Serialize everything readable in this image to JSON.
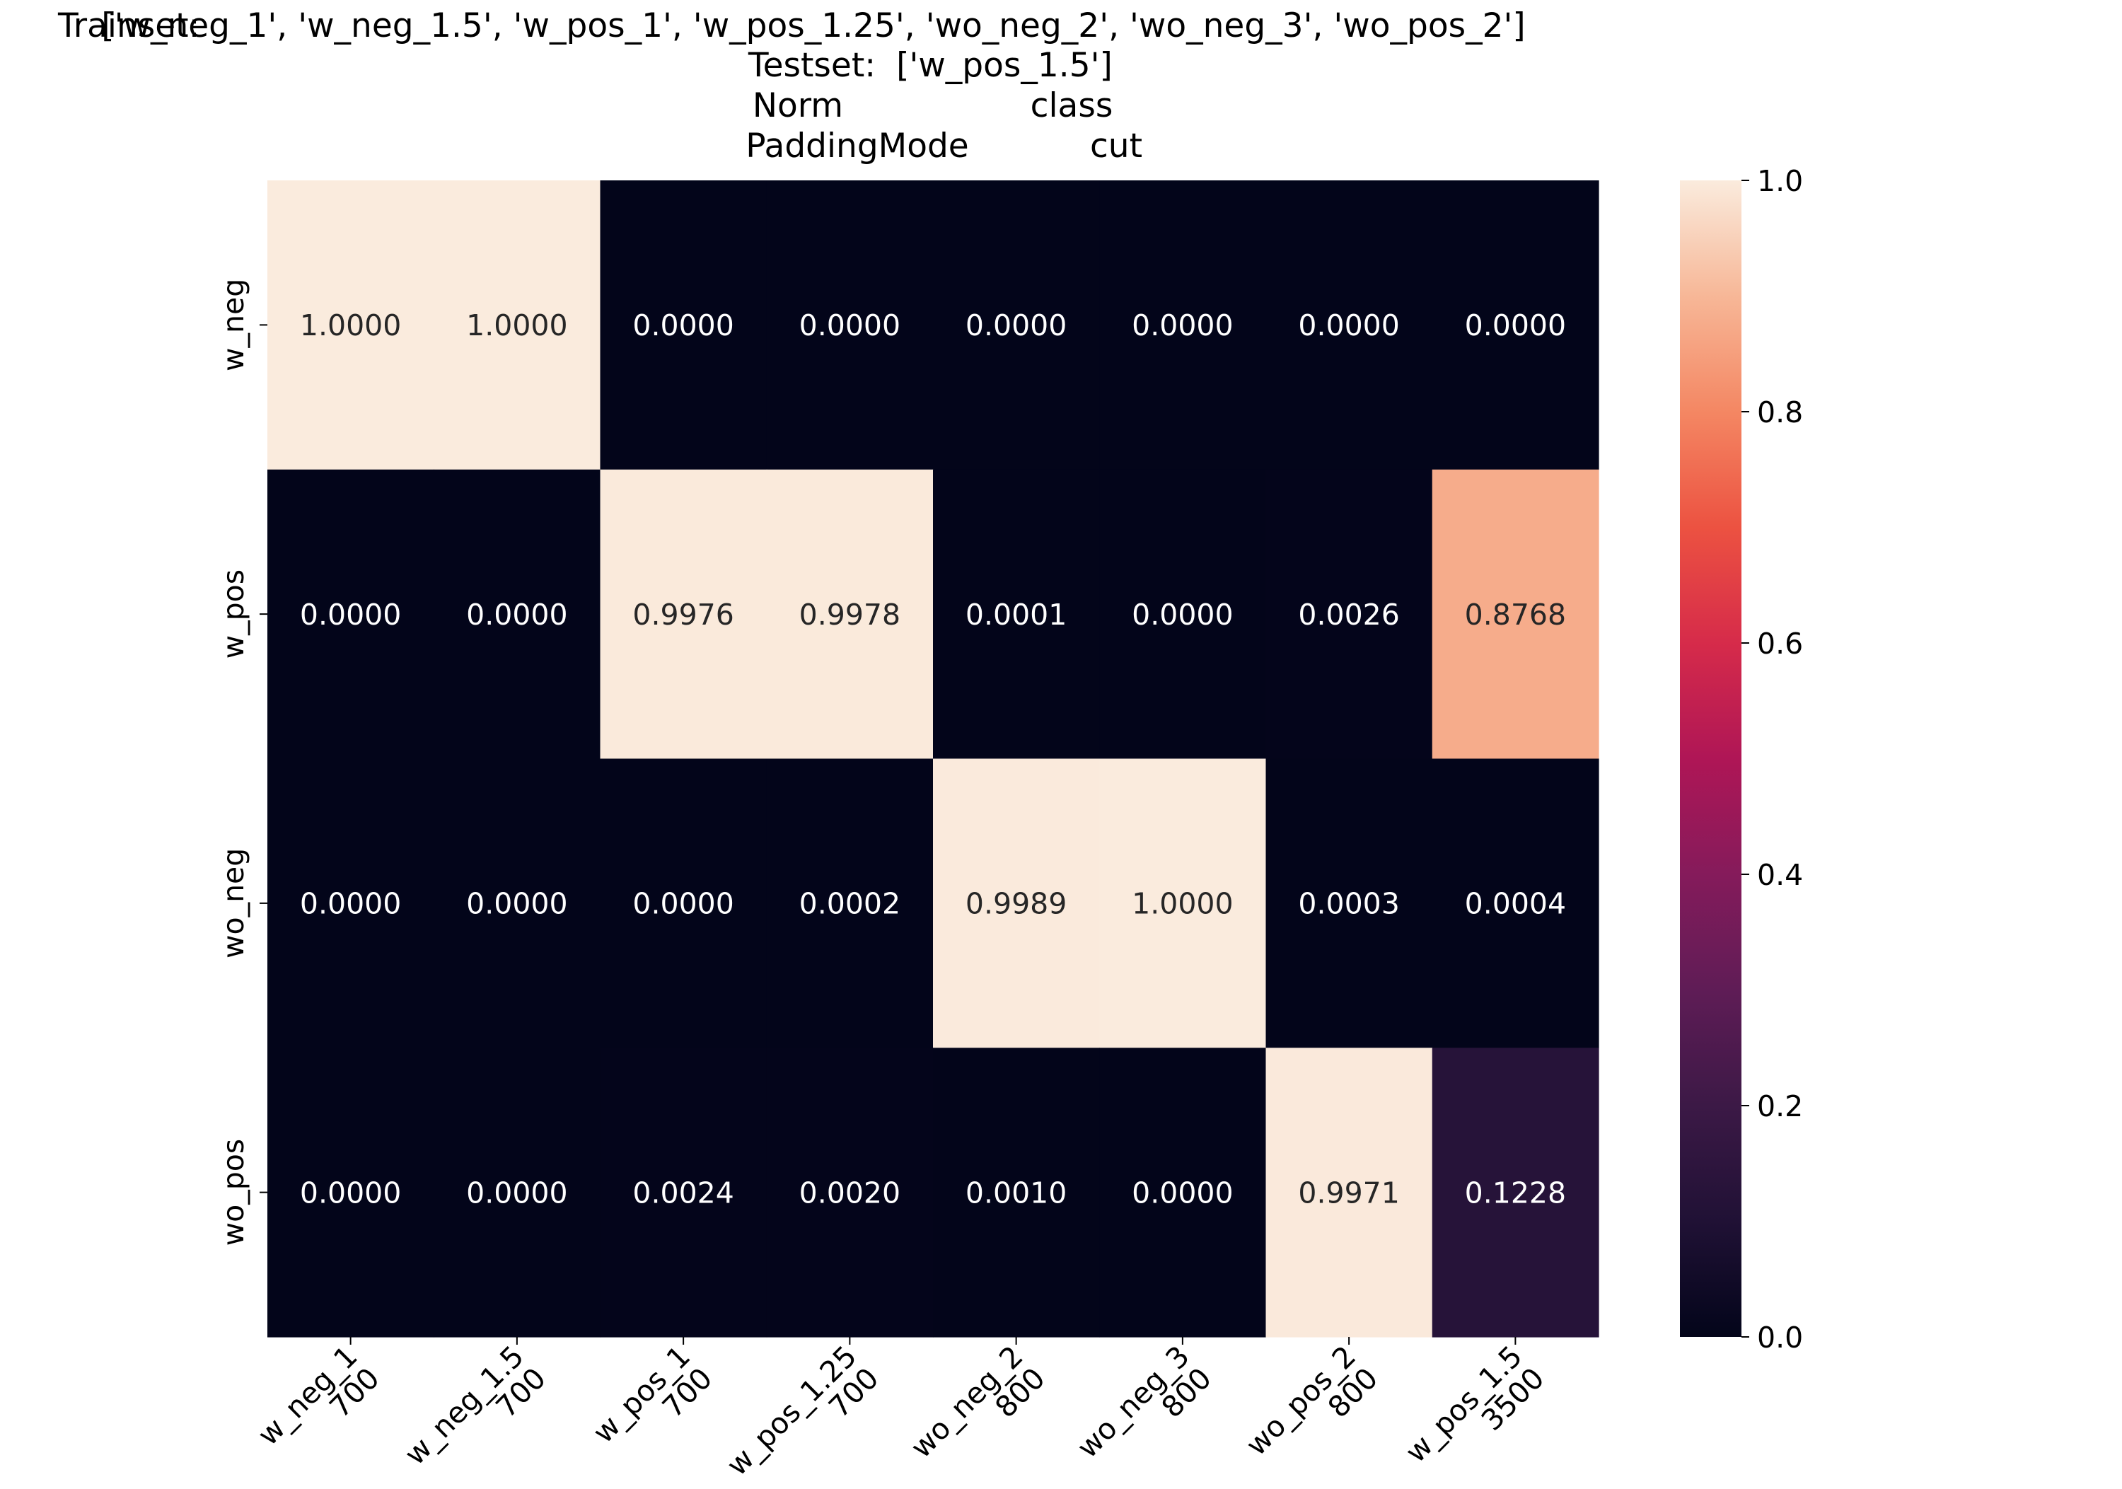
{
  "chart_data": {
    "type": "heatmap",
    "title_lines": [
      {
        "label": "Trainset:",
        "value": "['w_neg_1', 'w_neg_1.5', 'w_pos_1', 'w_pos_1.25', 'wo_neg_2', 'wo_neg_3', 'wo_pos_2']"
      },
      {
        "label": "Testset:",
        "value": "['w_pos_1.5']"
      },
      {
        "label": "Norm",
        "value": "class"
      },
      {
        "label": "PaddingMode",
        "value": "cut"
      }
    ],
    "rows": [
      "w_neg",
      "w_pos",
      "wo_neg",
      "wo_pos"
    ],
    "columns": [
      {
        "name": "w_neg_1",
        "count": "700"
      },
      {
        "name": "w_neg_1.5",
        "count": "700"
      },
      {
        "name": "w_pos_1",
        "count": "700"
      },
      {
        "name": "w_pos_1.25",
        "count": "700"
      },
      {
        "name": "wo_neg_2",
        "count": "800"
      },
      {
        "name": "wo_neg_3",
        "count": "800"
      },
      {
        "name": "wo_pos_2",
        "count": "800"
      },
      {
        "name": "w_pos_1.5",
        "count": "3500"
      }
    ],
    "values": [
      [
        1.0,
        1.0,
        0.0,
        0.0,
        0.0,
        0.0,
        0.0,
        0.0
      ],
      [
        0.0,
        0.0,
        0.9976,
        0.9978,
        0.0001,
        0.0,
        0.0026,
        0.8768
      ],
      [
        0.0,
        0.0,
        0.0,
        0.0002,
        0.9989,
        1.0,
        0.0003,
        0.0004
      ],
      [
        0.0,
        0.0,
        0.0024,
        0.002,
        0.001,
        0.0,
        0.9971,
        0.1228
      ]
    ],
    "value_format_decimals": 4,
    "colormap": "rocket",
    "colorbar": {
      "range": [
        0.0,
        1.0
      ],
      "ticks": [
        "0.0",
        "0.2",
        "0.4",
        "0.6",
        "0.8",
        "1.0"
      ]
    },
    "xlabel": "",
    "ylabel": ""
  }
}
